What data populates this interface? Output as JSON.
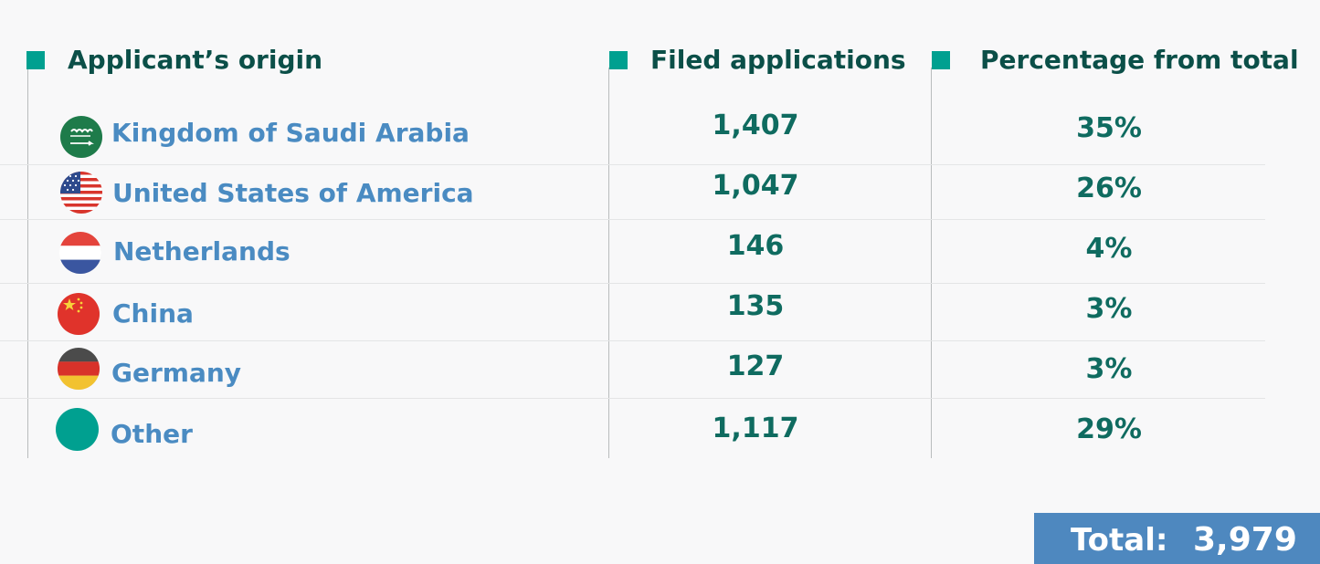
{
  "chart_data": {
    "type": "table",
    "columns": [
      "Applicant’s origin",
      "Filed applications",
      "Percentage from total"
    ],
    "rows": [
      {
        "origin": "Kingdom of Saudi Arabia",
        "icon": "saudi-arabia-flag-icon",
        "filed": "1,407",
        "percent": "35%"
      },
      {
        "origin": "United States of America",
        "icon": "usa-flag-icon",
        "filed": "1,047",
        "percent": "26%"
      },
      {
        "origin": "Netherlands",
        "icon": "netherlands-flag-icon",
        "filed": "146",
        "percent": "4%"
      },
      {
        "origin": "China",
        "icon": "china-flag-icon",
        "filed": "135",
        "percent": "3%"
      },
      {
        "origin": "Germany",
        "icon": "germany-flag-icon",
        "filed": "127",
        "percent": "3%"
      },
      {
        "origin": "Other",
        "icon": "other-circle-icon",
        "filed": "1,117",
        "percent": "29%"
      }
    ],
    "total_label": "Total:",
    "total_value": "3,979"
  },
  "colors": {
    "header_marker": "#00a090",
    "header_text": "#0b4f48",
    "country_text": "#4a8bc2",
    "value_text": "#0f6b60",
    "total_background": "#4e88bf",
    "other_circle": "#00a090"
  }
}
